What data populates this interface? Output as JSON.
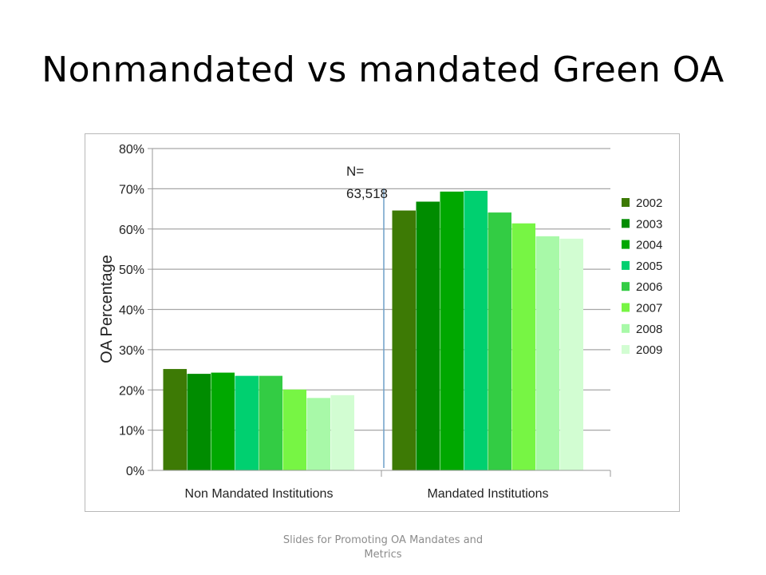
{
  "slide": {
    "title": "Nonmandated vs mandated Green OA",
    "footer": "Slides for Promoting OA Mandates and Metrics"
  },
  "chart_data": {
    "type": "bar",
    "title": "",
    "xlabel": "",
    "ylabel": "OA Percentage",
    "ylim": [
      0,
      80
    ],
    "y_ticks": [
      "0%",
      "10%",
      "20%",
      "30%",
      "40%",
      "50%",
      "60%",
      "70%",
      "80%"
    ],
    "grid": true,
    "legend_position": "right",
    "categories": [
      "Non Mandated Institutions",
      "Mandated Institutions"
    ],
    "series": [
      {
        "name": "2002",
        "color": "#3d7a05",
        "values": [
          25.2,
          64.6
        ]
      },
      {
        "name": "2003",
        "color": "#008c00",
        "values": [
          24.0,
          66.8
        ]
      },
      {
        "name": "2004",
        "color": "#00a800",
        "values": [
          24.3,
          69.3
        ]
      },
      {
        "name": "2005",
        "color": "#00d070",
        "values": [
          23.5,
          69.5
        ]
      },
      {
        "name": "2006",
        "color": "#33cc44",
        "values": [
          23.5,
          64.1
        ]
      },
      {
        "name": "2007",
        "color": "#77f544",
        "values": [
          20.1,
          61.4
        ]
      },
      {
        "name": "2008",
        "color": "#a8f9a8",
        "values": [
          18.0,
          58.2
        ]
      },
      {
        "name": "2009",
        "color": "#d2fdd2",
        "values": [
          18.7,
          57.6
        ]
      }
    ],
    "annotation": {
      "line1": "N=",
      "line2": "63,518"
    }
  }
}
